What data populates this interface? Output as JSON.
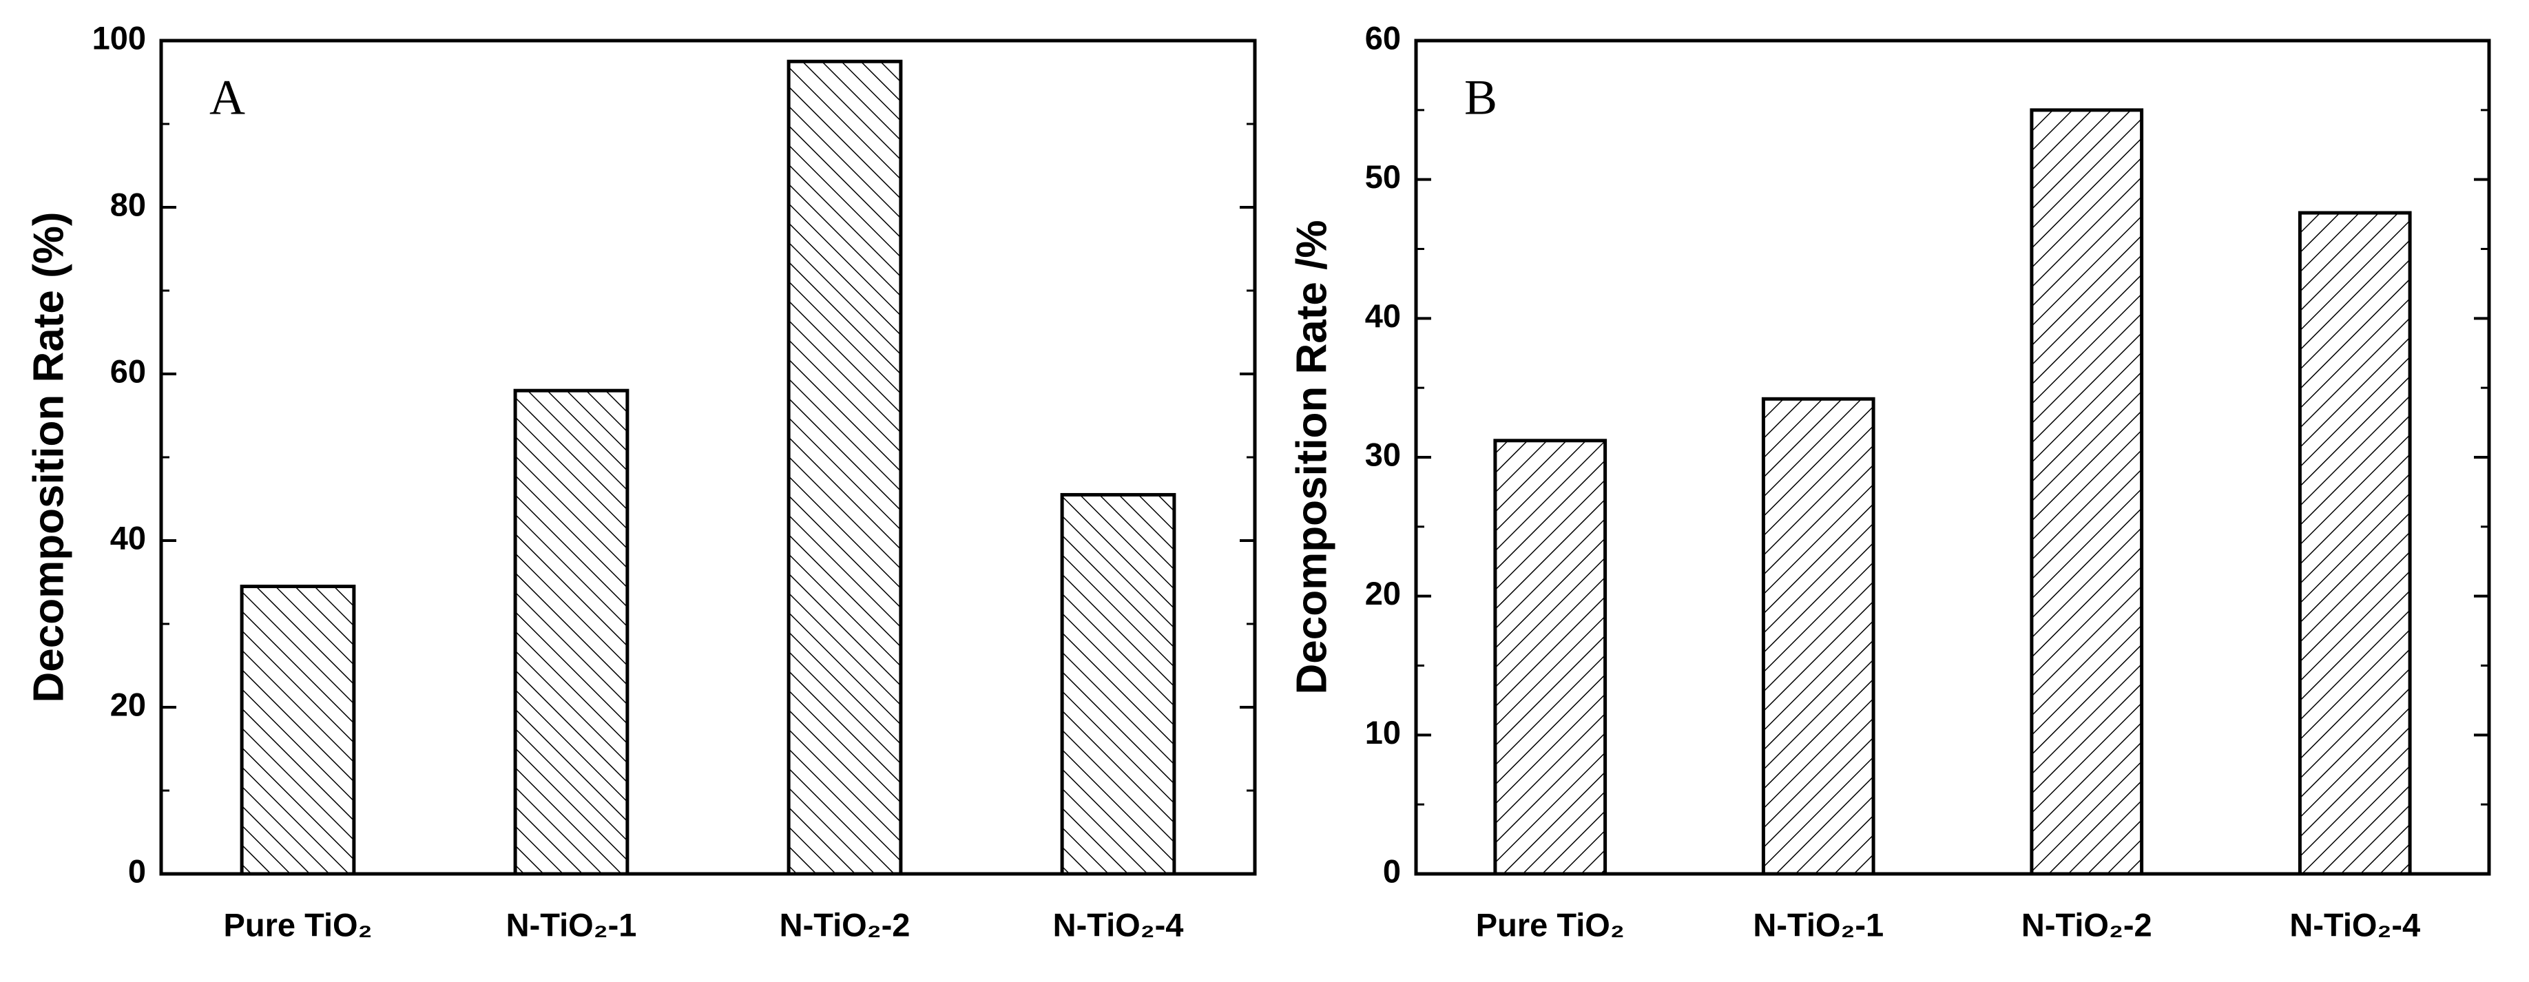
{
  "chart_data": [
    {
      "type": "bar",
      "annotation": "A",
      "ylabel": "Decomposition Rate (%)",
      "categories": [
        "Pure TiO₂",
        "N-TiO₂-1",
        "N-TiO₂-2",
        "N-TiO₂-4"
      ],
      "values": [
        34.5,
        58,
        97.5,
        45.5
      ],
      "color": "#000000",
      "hatch": "backslash",
      "ylim": [
        0,
        100
      ],
      "yticks": [
        0,
        20,
        40,
        60,
        80,
        100
      ]
    },
    {
      "type": "bar",
      "annotation": "B",
      "ylabel": "Decomposition Rate /%",
      "categories": [
        "Pure TiO₂",
        "N-TiO₂-1",
        "N-TiO₂-2",
        "N-TiO₂-4"
      ],
      "values": [
        31.2,
        34.2,
        55,
        47.6
      ],
      "color": "#000000",
      "hatch": "slash",
      "ylim": [
        0,
        60
      ],
      "yticks": [
        0,
        10,
        20,
        30,
        40,
        50,
        60
      ]
    }
  ]
}
